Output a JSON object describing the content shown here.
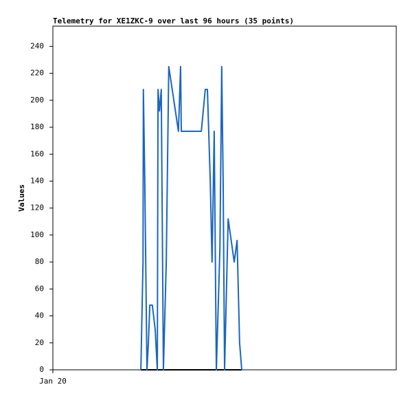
{
  "chart_data": {
    "type": "line",
    "title": "Telemetry for XE1ZKC-9 over last 96 hours (35 points)",
    "y_label": "Values",
    "x": [
      24.6,
      25.2,
      25.3,
      25.7,
      26.3,
      26.7,
      27.1,
      27.8,
      28.6,
      29.2,
      29.4,
      29.8,
      30.3,
      30.9,
      31.7,
      32.4,
      35.1,
      35.7,
      35.9,
      41.5,
      42.6,
      43.2,
      44.0,
      44.5,
      45.1,
      45.7,
      46.7,
      47.2,
      47.6,
      48.0,
      49.0,
      50.7,
      51.5,
      52.2,
      52.8
    ],
    "series": [
      {
        "color": "#1a66c0",
        "values": [
          0,
          80,
          208,
          140,
          0,
          20,
          48,
          48,
          30,
          0,
          208,
          192,
          208,
          0,
          80,
          225,
          177,
          225,
          177,
          177,
          208,
          208,
          140,
          80,
          177,
          0,
          90,
          225,
          140,
          0,
          112,
          80,
          96,
          20,
          0
        ]
      },
      {
        "color": "#000000",
        "values": [
          0,
          0,
          0,
          0,
          0,
          0,
          0,
          0,
          0,
          0,
          0,
          0,
          0,
          0,
          0,
          0,
          0,
          0,
          0,
          0,
          0,
          0,
          0,
          0,
          0,
          0,
          0,
          0,
          0,
          0,
          0,
          0,
          0,
          0,
          0
        ]
      }
    ],
    "xlim": [
      0,
      96
    ],
    "xticks": [
      {
        "value": 0,
        "label": "Jan 20"
      }
    ],
    "ylim": [
      0,
      255
    ],
    "yticks": [
      0,
      20,
      40,
      60,
      80,
      100,
      120,
      140,
      160,
      180,
      200,
      220,
      240
    ]
  }
}
